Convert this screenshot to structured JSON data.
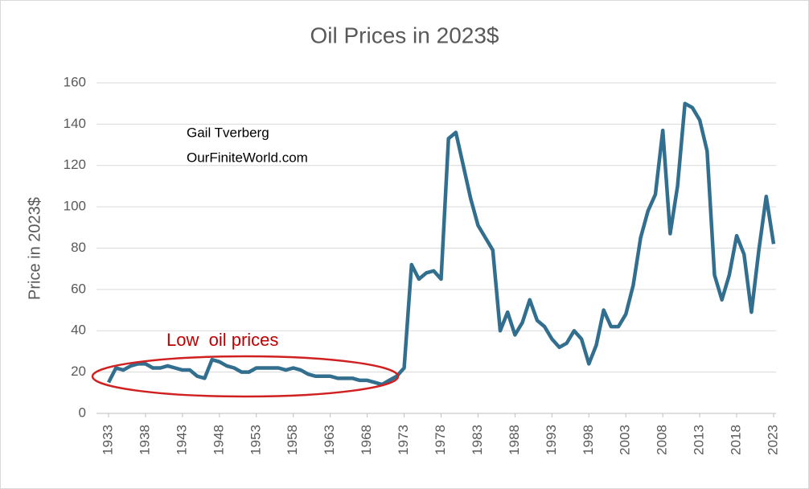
{
  "chart_data": {
    "type": "line",
    "title": "Oil Prices in 2023$",
    "y_label": "Price in 2023$",
    "annotations": [
      "Gail Tverberg",
      "OurFiniteWorld.com",
      "Low  oil prices"
    ],
    "x": [
      1933,
      1934,
      1935,
      1936,
      1937,
      1938,
      1939,
      1940,
      1941,
      1942,
      1943,
      1944,
      1945,
      1946,
      1947,
      1948,
      1949,
      1950,
      1951,
      1952,
      1953,
      1954,
      1955,
      1956,
      1957,
      1958,
      1959,
      1960,
      1961,
      1962,
      1963,
      1964,
      1965,
      1966,
      1967,
      1968,
      1969,
      1970,
      1971,
      1972,
      1973,
      1974,
      1975,
      1976,
      1977,
      1978,
      1979,
      1980,
      1981,
      1982,
      1983,
      1984,
      1985,
      1986,
      1987,
      1988,
      1989,
      1990,
      1991,
      1992,
      1993,
      1994,
      1995,
      1996,
      1997,
      1998,
      1999,
      2000,
      2001,
      2002,
      2003,
      2004,
      2005,
      2006,
      2007,
      2008,
      2009,
      2010,
      2011,
      2012,
      2013,
      2014,
      2015,
      2016,
      2017,
      2018,
      2019,
      2020,
      2021,
      2022,
      2023
    ],
    "values": [
      15,
      22,
      21,
      23,
      24,
      24,
      22,
      22,
      23,
      22,
      21,
      21,
      18,
      17,
      26,
      25,
      23,
      22,
      20,
      20,
      22,
      22,
      22,
      22,
      21,
      22,
      21,
      19,
      18,
      18,
      18,
      17,
      17,
      17,
      16,
      16,
      15,
      14,
      16,
      18,
      22,
      72,
      65,
      68,
      69,
      65,
      133,
      136,
      120,
      104,
      91,
      85,
      79,
      40,
      49,
      38,
      44,
      55,
      45,
      42,
      36,
      32,
      34,
      40,
      36,
      24,
      33,
      50,
      42,
      42,
      48,
      62,
      85,
      98,
      106,
      137,
      87,
      110,
      150,
      148,
      142,
      127,
      67,
      55,
      67,
      86,
      77,
      49,
      79,
      105,
      82
    ],
    "color": "#326f8f",
    "xlim": [
      1933,
      2023
    ],
    "xticks": [
      1933,
      1938,
      1943,
      1948,
      1953,
      1958,
      1963,
      1968,
      1973,
      1978,
      1983,
      1988,
      1993,
      1998,
      2003,
      2008,
      2013,
      2018,
      2023
    ],
    "ylim": [
      0,
      160
    ],
    "yticks": [
      0,
      20,
      40,
      60,
      80,
      100,
      120,
      140,
      160
    ],
    "grid": true
  }
}
